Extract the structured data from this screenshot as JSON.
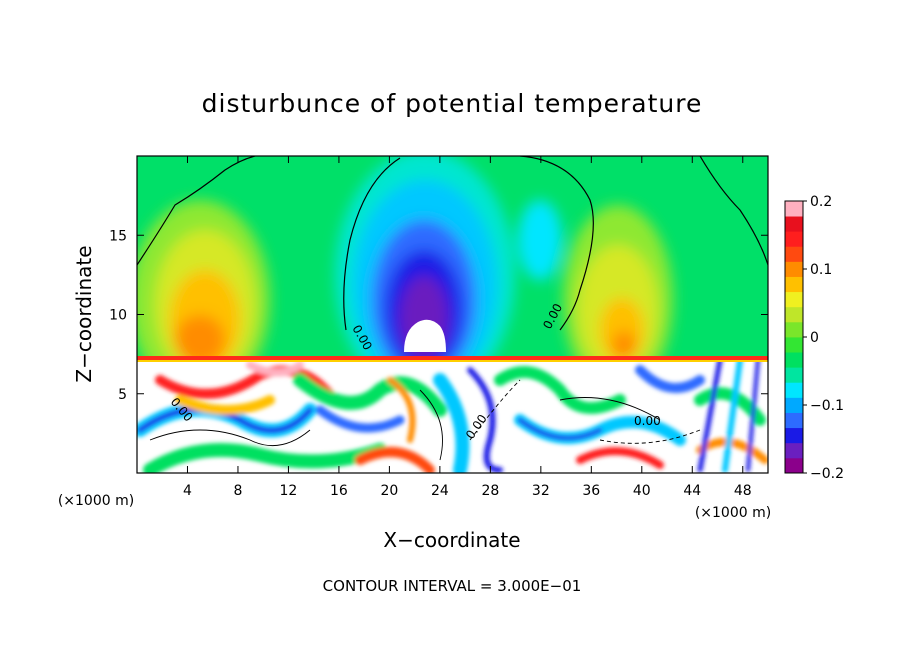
{
  "chart_data": {
    "type": "heatmap",
    "title": "disturbunce of potential temperature",
    "xlabel": "X−coordinate",
    "ylabel": "Z−coordinate",
    "x_unit_left": "(×1000 m)",
    "x_unit_right": "(×1000 m)",
    "xlim": [
      0,
      50
    ],
    "ylim": [
      0,
      20
    ],
    "x_ticks": [
      "4",
      "8",
      "12",
      "16",
      "20",
      "24",
      "28",
      "32",
      "36",
      "40",
      "44",
      "48"
    ],
    "y_ticks": [
      "5",
      "10",
      "15"
    ],
    "colorbar": {
      "ticks": [
        "0.2",
        "0.1",
        "0",
        "−0.1",
        "−0.2"
      ],
      "range": [
        -0.2,
        0.2
      ],
      "colors": [
        "#8b008b",
        "#6a1fbf",
        "#1a1ae6",
        "#2d6bff",
        "#00a9ff",
        "#00e6ff",
        "#00e5a0",
        "#00e060",
        "#33e633",
        "#7ae62a",
        "#bfe629",
        "#f0f020",
        "#ffc000",
        "#ff8c00",
        "#ff4a10",
        "#ff1e1e",
        "#e8101e",
        "#ffb0c0"
      ]
    },
    "contour_labels": [
      "0.00",
      "0.00",
      "0.00",
      "0.00",
      "0.00"
    ],
    "footer": "CONTOUR INTERVAL = 3.000E−01"
  }
}
